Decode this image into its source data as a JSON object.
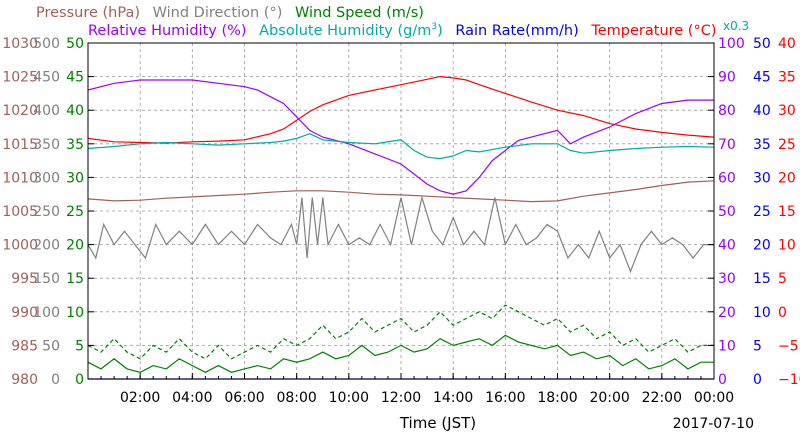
{
  "chart_data": {
    "type": "line",
    "date": "2017-07-10",
    "xlabel": "Time (JST)",
    "x_ticks": [
      "02:00",
      "04:00",
      "06:00",
      "08:00",
      "10:00",
      "12:00",
      "14:00",
      "16:00",
      "18:00",
      "20:00",
      "22:00",
      "00:00"
    ],
    "x_range_hours": [
      0,
      24
    ],
    "grid": true,
    "axes": {
      "pressure": {
        "label": "Pressure (hPa)",
        "color": "#a0605a",
        "range": [
          980,
          1030
        ],
        "ticks": [
          "980",
          "985",
          "990",
          "995",
          "1000",
          "1005",
          "1010",
          "1015",
          "1020",
          "1025",
          "1030"
        ]
      },
      "wind_direction": {
        "label": "Wind Direction (°)",
        "color": "#808080",
        "range": [
          0,
          500
        ],
        "ticks": [
          "0",
          "50",
          "100",
          "150",
          "200",
          "250",
          "300",
          "350",
          "400",
          "450",
          "500"
        ]
      },
      "wind_speed": {
        "label": "Wind Speed (m/s)",
        "color": "#008000",
        "range": [
          0,
          50
        ],
        "ticks": [
          "0",
          "5",
          "10",
          "15",
          "20",
          "25",
          "30",
          "35",
          "40",
          "45",
          "50"
        ]
      },
      "relative_humidity": {
        "label": "Relative Humidity (%)",
        "color": "#9900ff",
        "range": [
          0,
          100
        ],
        "ticks": [
          "0",
          "10",
          "20",
          "30",
          "40",
          "50",
          "60",
          "70",
          "80",
          "90",
          "100"
        ]
      },
      "rain_rate": {
        "label": "Rain Rate(mm/h)",
        "color": "#0000ff",
        "range": [
          0,
          50
        ],
        "ticks": [
          "0",
          "5",
          "10",
          "15",
          "20",
          "25",
          "30",
          "35",
          "40",
          "45",
          "50"
        ]
      },
      "temperature": {
        "label": "Temperature (°C)",
        "color": "#ff0000",
        "range": [
          -10,
          40
        ],
        "ticks": [
          "−10",
          "−5",
          "0",
          "5",
          "10",
          "15",
          "20",
          "25",
          "30",
          "35",
          "40"
        ]
      }
    },
    "title_row1": [
      {
        "text": "Pressure (hPa)",
        "color": "#a0605a"
      },
      {
        "text": "Wind Direction (°)",
        "color": "#808080"
      },
      {
        "text": "Wind Speed (m/s)",
        "color": "#008000"
      }
    ],
    "title_row2": [
      {
        "text": "Relative Humidity (%)",
        "color": "#9900ff"
      },
      {
        "text": "Absolute Humidity (g/m",
        "color": "#00aaaa"
      },
      {
        "text": "3",
        "color": "#00aaaa"
      },
      {
        "text": ")",
        "color": "#00aaaa"
      },
      {
        "text": "Rain Rate(mm/h)",
        "color": "#0000ff"
      },
      {
        "text": "Temperature (°C)",
        "color": "#ff0000"
      }
    ],
    "abs_humidity_scale_note": "x0.3",
    "series": [
      {
        "name": "Temperature (°C)",
        "color": "#ff0000",
        "axis": "temperature",
        "x": [
          0,
          1,
          2,
          3,
          4,
          5,
          6,
          7,
          7.5,
          8,
          8.5,
          9,
          10,
          11,
          12,
          13,
          13.5,
          14,
          14.5,
          15,
          16,
          17,
          18,
          19,
          20,
          21,
          22,
          23,
          24
        ],
        "values": [
          25.8,
          25.3,
          25.2,
          25.1,
          25.3,
          25.4,
          25.6,
          26.5,
          27.2,
          28.5,
          29.8,
          30.8,
          32.2,
          33.0,
          33.8,
          34.6,
          35.0,
          34.8,
          34.5,
          33.8,
          32.5,
          31.2,
          30.0,
          29.2,
          28.0,
          27.2,
          26.7,
          26.3,
          26.0
        ]
      },
      {
        "name": "Relative Humidity (%)",
        "color": "#9900ff",
        "axis": "relative_humidity",
        "x": [
          0,
          0.5,
          1,
          2,
          3,
          4,
          5,
          6,
          6.5,
          7,
          7.5,
          8,
          8.5,
          9,
          10,
          11,
          12,
          12.5,
          13,
          13.5,
          14,
          14.5,
          15,
          15.5,
          16,
          16.5,
          17,
          17.5,
          18,
          18.5,
          19,
          20,
          21,
          22,
          23,
          24
        ],
        "values": [
          86,
          87,
          88,
          89,
          89,
          89,
          88,
          87,
          86,
          84,
          82,
          78,
          74,
          72,
          70,
          67,
          64,
          61,
          58,
          56,
          55,
          56,
          60,
          65,
          68,
          71,
          72,
          73,
          74,
          70,
          72,
          75,
          79,
          82,
          83,
          83
        ]
      },
      {
        "name": "Absolute Humidity (x0.3)",
        "color": "#00aaaa",
        "axis": "rain_rate",
        "x": [
          0,
          1,
          2,
          3,
          4,
          5,
          6,
          7,
          7.5,
          8,
          8.5,
          9,
          10,
          11,
          12,
          12.5,
          13,
          13.5,
          14,
          14.5,
          15,
          16,
          17,
          18,
          18.5,
          19,
          20,
          21,
          22,
          23,
          24
        ],
        "values": [
          34.3,
          34.6,
          35.0,
          35.2,
          35.0,
          34.8,
          35.0,
          35.2,
          35.4,
          35.8,
          36.5,
          35.6,
          35.2,
          35.0,
          35.6,
          34.0,
          33.0,
          32.8,
          33.2,
          34.0,
          33.8,
          34.5,
          35.0,
          35.0,
          34.0,
          33.6,
          34.0,
          34.3,
          34.5,
          34.6,
          34.5
        ]
      },
      {
        "name": "Pressure (hPa)",
        "color": "#a0605a",
        "axis": "pressure",
        "x": [
          0,
          1,
          2,
          3,
          4,
          5,
          6,
          7,
          8,
          9,
          10,
          11,
          12,
          13,
          14,
          15,
          16,
          17,
          18,
          19,
          20,
          21,
          22,
          23,
          24
        ],
        "values": [
          1006.8,
          1006.5,
          1006.6,
          1006.9,
          1007.1,
          1007.3,
          1007.5,
          1007.8,
          1008.0,
          1008.0,
          1007.8,
          1007.5,
          1007.4,
          1007.2,
          1007.0,
          1006.8,
          1006.6,
          1006.4,
          1006.5,
          1007.2,
          1007.7,
          1008.2,
          1008.8,
          1009.3,
          1009.5
        ]
      },
      {
        "name": "Wind Direction (°)",
        "color": "#808080",
        "axis": "wind_direction",
        "baseline": 200,
        "x": [
          0,
          0.3,
          0.6,
          1.0,
          1.4,
          1.8,
          2.2,
          2.6,
          3.0,
          3.5,
          4.0,
          4.5,
          5.0,
          5.5,
          6.0,
          6.5,
          7.0,
          7.4,
          7.8,
          8.0,
          8.2,
          8.4,
          8.6,
          8.8,
          9.0,
          9.2,
          9.6,
          10.0,
          10.4,
          10.8,
          11.2,
          11.6,
          12.0,
          12.4,
          12.8,
          13.2,
          13.6,
          14.0,
          14.4,
          14.8,
          15.2,
          15.6,
          16.0,
          16.4,
          16.8,
          17.2,
          17.6,
          18.0,
          18.4,
          18.8,
          19.2,
          19.6,
          20.0,
          20.4,
          20.8,
          21.2,
          21.6,
          22.0,
          22.4,
          22.8,
          23.2,
          23.6,
          24.0
        ],
        "values": [
          200,
          180,
          230,
          200,
          220,
          200,
          180,
          230,
          200,
          220,
          200,
          230,
          200,
          220,
          200,
          230,
          210,
          200,
          230,
          200,
          270,
          180,
          270,
          200,
          270,
          200,
          230,
          200,
          210,
          200,
          230,
          200,
          270,
          200,
          270,
          220,
          200,
          240,
          200,
          220,
          200,
          270,
          200,
          230,
          200,
          210,
          230,
          220,
          180,
          200,
          180,
          220,
          180,
          200,
          160,
          200,
          220,
          200,
          210,
          200,
          180,
          200,
          200
        ]
      },
      {
        "name": "Wind Speed (m/s) max",
        "color": "#008000",
        "axis": "wind_speed",
        "dashed": true,
        "x": [
          0,
          0.5,
          1,
          1.5,
          2,
          2.5,
          3,
          3.5,
          4,
          4.5,
          5,
          5.5,
          6,
          6.5,
          7,
          7.5,
          8,
          8.5,
          9,
          9.5,
          10,
          10.5,
          11,
          11.5,
          12,
          12.5,
          13,
          13.5,
          14,
          14.5,
          15,
          15.5,
          16,
          16.5,
          17,
          17.5,
          18,
          18.5,
          19,
          19.5,
          20,
          20.5,
          21,
          21.5,
          22,
          22.5,
          23,
          23.5,
          24
        ],
        "values": [
          5,
          4,
          6,
          4,
          3,
          5,
          4,
          6,
          4,
          3,
          5,
          3,
          4,
          5,
          4,
          6,
          5,
          6,
          8,
          6,
          7,
          9,
          7,
          8,
          9,
          7,
          8,
          10,
          8,
          9,
          10,
          9,
          11,
          10,
          9,
          8,
          9,
          7,
          8,
          6,
          7,
          5,
          6,
          4,
          5,
          6,
          4,
          5,
          5
        ]
      },
      {
        "name": "Wind Speed (m/s)",
        "color": "#008000",
        "axis": "wind_speed",
        "x": [
          0,
          0.5,
          1,
          1.5,
          2,
          2.5,
          3,
          3.5,
          4,
          4.5,
          5,
          5.5,
          6,
          6.5,
          7,
          7.5,
          8,
          8.5,
          9,
          9.5,
          10,
          10.5,
          11,
          11.5,
          12,
          12.5,
          13,
          13.5,
          14,
          14.5,
          15,
          15.5,
          16,
          16.5,
          17,
          17.5,
          18,
          18.5,
          19,
          19.5,
          20,
          20.5,
          21,
          21.5,
          22,
          22.5,
          23,
          23.5,
          24
        ],
        "values": [
          2.5,
          1.5,
          3,
          1.5,
          1,
          2,
          1.5,
          3,
          2,
          1,
          2,
          1,
          1.5,
          2,
          1.5,
          3,
          2.5,
          3,
          4,
          3,
          3.5,
          5,
          3.5,
          4,
          5,
          4,
          4.5,
          6,
          5,
          5.5,
          6,
          5,
          6.5,
          5.5,
          5,
          4.5,
          5,
          3.5,
          4,
          3,
          3.5,
          2,
          3,
          1.5,
          2,
          3,
          1.5,
          2.5,
          2.5
        ]
      },
      {
        "name": "Rain Rate(mm/h)",
        "color": "#0000ff",
        "axis": "rain_rate",
        "x": [
          0,
          24
        ],
        "values": [
          0,
          0
        ]
      }
    ]
  }
}
